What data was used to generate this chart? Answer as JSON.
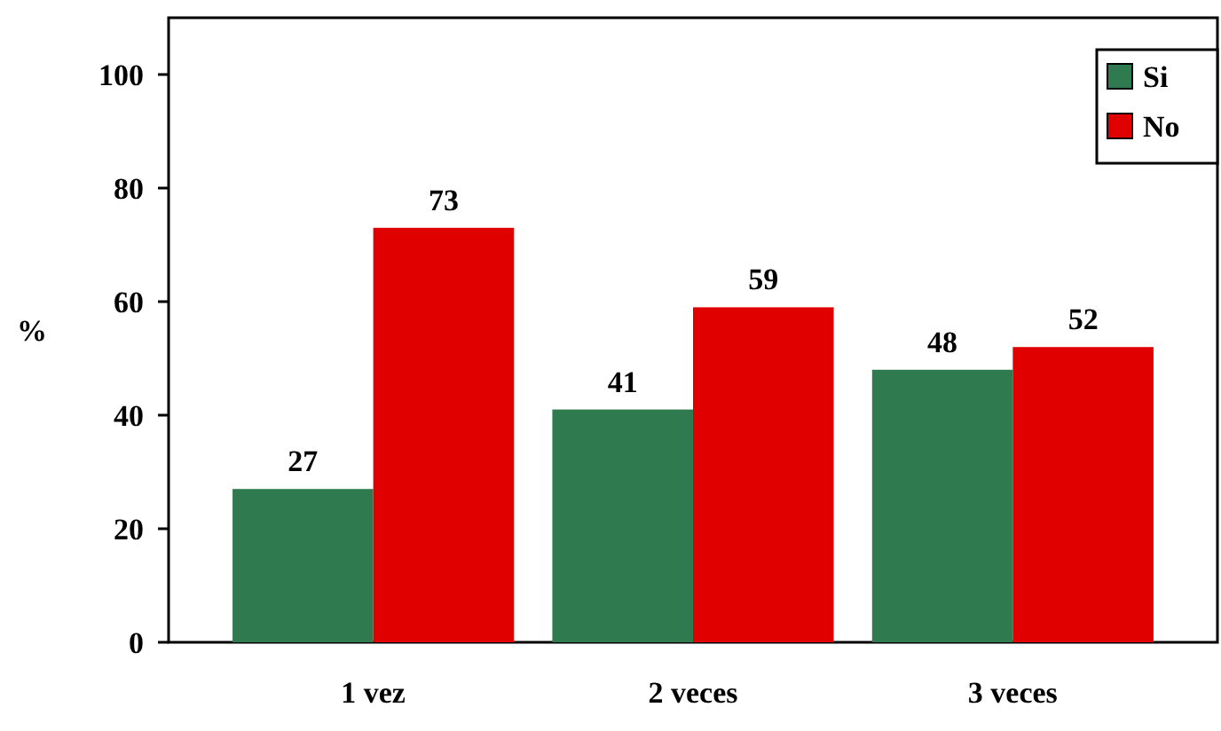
{
  "chart_data": {
    "type": "bar",
    "ylabel": "%",
    "categories": [
      "1 vez",
      "2 veces",
      "3 veces"
    ],
    "series": [
      {
        "name": "Si",
        "color": "#2f7a4e",
        "values": [
          27,
          41,
          48
        ]
      },
      {
        "name": "No",
        "color": "#e00000",
        "values": [
          73,
          59,
          52
        ]
      }
    ],
    "ylim": [
      0,
      110
    ],
    "yticks": [
      0,
      20,
      40,
      60,
      80,
      100
    ],
    "data_labels": true,
    "legend": "top right",
    "grid": false
  }
}
